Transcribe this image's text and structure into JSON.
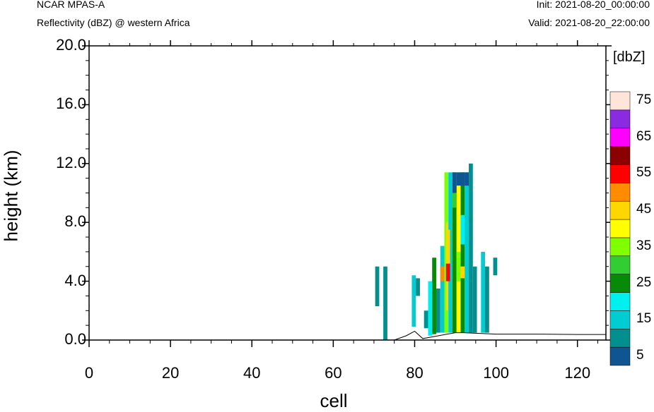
{
  "header": {
    "model": "NCAR MPAS-A",
    "subtitle": "Reflectivity (dBZ) @ western Africa",
    "init": "Init: 2021-08-20_00:00:00",
    "valid": "Valid: 2021-08-20_22:00:00"
  },
  "chart_data": {
    "type": "heatmap",
    "xlabel": "cell",
    "ylabel": "height (km)",
    "xlim": [
      0,
      127
    ],
    "ylim": [
      0,
      20
    ],
    "x_ticks": [
      "0",
      "20",
      "40",
      "60",
      "80",
      "100",
      "120"
    ],
    "y_ticks": [
      "0.0",
      "4.0",
      "8.0",
      "12.0",
      "16.0",
      "20.0"
    ],
    "colorbar": {
      "unit": "[dbZ]",
      "levels": [
        5,
        10,
        15,
        20,
        25,
        30,
        35,
        40,
        45,
        50,
        55,
        60,
        65,
        70,
        75,
        80
      ],
      "labels": [
        "5",
        "15",
        "25",
        "35",
        "45",
        "55",
        "65",
        "75"
      ],
      "colors": [
        "#0e5591",
        "#048f8f",
        "#00ccd2",
        "#00f0f0",
        "#078a07",
        "#32cd32",
        "#7fff00",
        "#ffff00",
        "#ffd700",
        "#ff8c00",
        "#ff0000",
        "#8b0000",
        "#ff00ff",
        "#8a2be2",
        "#ffe4da"
      ]
    },
    "terrain": [
      [
        0,
        0
      ],
      [
        75,
        0
      ],
      [
        78,
        0.3
      ],
      [
        80,
        0.6
      ],
      [
        82,
        0.1
      ],
      [
        84,
        0.2
      ],
      [
        86,
        0.3
      ],
      [
        88,
        0.4
      ],
      [
        90,
        0.5
      ],
      [
        92,
        0.5
      ],
      [
        96,
        0.45
      ],
      [
        100,
        0.4
      ],
      [
        110,
        0.4
      ],
      [
        120,
        0.38
      ],
      [
        127,
        0.38
      ]
    ],
    "cells": [
      {
        "x": 70.8,
        "y0": 2.3,
        "y1": 5.0,
        "v": 10
      },
      {
        "x": 72.8,
        "y0": 0.0,
        "y1": 5.0,
        "v": 10
      },
      {
        "x": 79.8,
        "y0": 0.9,
        "y1": 4.4,
        "v": 15
      },
      {
        "x": 80.8,
        "y0": 3.0,
        "y1": 4.2,
        "v": 10
      },
      {
        "x": 82.8,
        "y0": 0.8,
        "y1": 2.0,
        "v": 10
      },
      {
        "x": 83.8,
        "y0": 0.3,
        "y1": 4.0,
        "v": 20
      },
      {
        "x": 84.8,
        "y0": 0.4,
        "y1": 5.6,
        "v": 25
      },
      {
        "x": 85.8,
        "y0": 0.5,
        "y1": 3.5,
        "v": 10
      },
      {
        "x": 86.8,
        "y0": 0.5,
        "y1": 6.4,
        "v": 15
      },
      {
        "x": 87.8,
        "y0": 0.5,
        "y1": 11.4,
        "v": 35
      },
      {
        "x": 88.2,
        "y0": 2.0,
        "y1": 8.0,
        "v": 45
      },
      {
        "x": 88.8,
        "y0": 0.5,
        "y1": 11.4,
        "v": 15
      },
      {
        "x": 89.8,
        "y0": 0.5,
        "y1": 11.4,
        "v": 25
      },
      {
        "x": 90.8,
        "y0": 0.5,
        "y1": 11.4,
        "v": 40
      },
      {
        "x": 91.8,
        "y0": 0.5,
        "y1": 11.4,
        "v": 25
      },
      {
        "x": 92.8,
        "y0": 0.5,
        "y1": 11.4,
        "v": 15
      },
      {
        "x": 93.8,
        "y0": 0.5,
        "y1": 12.0,
        "v": 10
      },
      {
        "x": 94.8,
        "y0": 0.5,
        "y1": 5.0,
        "v": 10
      },
      {
        "x": 96.8,
        "y0": 0.5,
        "y1": 6.0,
        "v": 15
      },
      {
        "x": 97.8,
        "y0": 0.5,
        "y1": 5.0,
        "v": 10
      },
      {
        "x": 99.8,
        "y0": 4.4,
        "y1": 5.6,
        "v": 10
      }
    ],
    "hotspots": [
      {
        "x": 88.2,
        "y0": 4.0,
        "y1": 5.2,
        "v": 55
      },
      {
        "x": 88.2,
        "y0": 5.2,
        "y1": 7.5,
        "v": 45
      },
      {
        "x": 89.8,
        "y0": 9.0,
        "y1": 10.0,
        "v": 30
      },
      {
        "x": 89.8,
        "y0": 10.0,
        "y1": 11.4,
        "v": 5
      },
      {
        "x": 90.8,
        "y0": 10.5,
        "y1": 11.4,
        "v": 5
      },
      {
        "x": 91.8,
        "y0": 10.5,
        "y1": 11.4,
        "v": 5
      },
      {
        "x": 92.8,
        "y0": 10.5,
        "y1": 11.4,
        "v": 5
      },
      {
        "x": 91.8,
        "y0": 6.5,
        "y1": 8.5,
        "v": 20
      },
      {
        "x": 90.8,
        "y0": 4.0,
        "y1": 6.0,
        "v": 35
      },
      {
        "x": 91.8,
        "y0": 4.2,
        "y1": 5.0,
        "v": 45
      },
      {
        "x": 86.8,
        "y0": 4.0,
        "y1": 5.0,
        "v": 50
      }
    ]
  }
}
